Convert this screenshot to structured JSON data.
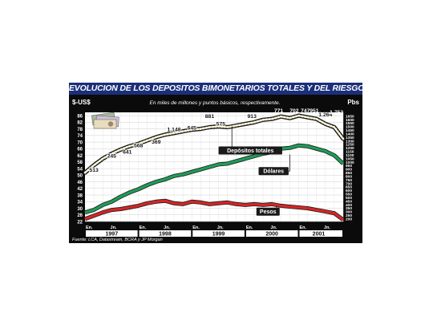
{
  "chart_data": {
    "type": "line",
    "title": "EVOLUCION DE LOS DEPOSITOS BIMONETARIOS TOTALES Y DEL RIESGO-PAIS",
    "subtitle": "En miles de millones y puntos básicos, respectivamente.",
    "ylabel_left": "$-US$",
    "ylabel_right": "Pbs",
    "source": "Fuente: LCA, Datastream, BCRA y JP Morgan",
    "grid": true,
    "x_ticks": [
      {
        "label": "En.",
        "x": 0
      },
      {
        "label": "Jn.",
        "x": 5.5
      },
      {
        "label": "En.",
        "x": 12
      },
      {
        "label": "Jn.",
        "x": 17.5
      },
      {
        "label": "En.",
        "x": 24
      },
      {
        "label": "Jn.",
        "x": 29.5
      },
      {
        "label": "En.",
        "x": 36
      },
      {
        "label": "Jn.",
        "x": 41.5
      },
      {
        "label": "En.",
        "x": 48
      },
      {
        "label": "Jn.",
        "x": 53.5
      }
    ],
    "years": [
      {
        "label": "1997",
        "x": 6
      },
      {
        "label": "1998",
        "x": 18
      },
      {
        "label": "1999",
        "x": 30
      },
      {
        "label": "2000",
        "x": 42
      },
      {
        "label": "2001",
        "x": 52.5
      }
    ],
    "year_boundaries": [
      12,
      24,
      36,
      48
    ],
    "xlim": [
      0,
      58
    ],
    "ylim_left": [
      22,
      88
    ],
    "left_ticks": [
      86,
      82,
      78,
      74,
      70,
      66,
      62,
      58,
      54,
      50,
      46,
      42,
      38,
      34,
      30,
      26,
      22
    ],
    "ylim_right": [
      160,
      1700
    ],
    "right_ticks": [
      1650,
      1600,
      1550,
      1500,
      1450,
      1400,
      1350,
      1300,
      1250,
      1200,
      1150,
      1100,
      1050,
      1000,
      950,
      900,
      850,
      800,
      750,
      700,
      650,
      600,
      550,
      500,
      450,
      400,
      350,
      300,
      250,
      200
    ],
    "series": [
      {
        "name": "Depósitos totales",
        "color": "#fff6d8",
        "style": "dotted",
        "x": [
          0,
          2,
          4,
          6,
          8,
          10,
          12,
          14,
          16,
          18,
          20,
          22,
          24,
          26,
          28,
          30,
          32,
          34,
          36,
          38,
          40,
          42,
          44,
          46,
          48,
          50,
          52,
          54,
          56,
          58
        ],
        "values": [
          51.5,
          56,
          60,
          63,
          65.5,
          67.5,
          69,
          71,
          73,
          74.5,
          75.5,
          76.5,
          77.5,
          78,
          79,
          79.5,
          79,
          80,
          81,
          82,
          83.5,
          84,
          85.5,
          84.5,
          86,
          85,
          84,
          81,
          79,
          72
        ]
      },
      {
        "name": "Dólares",
        "color": "#1f9c58",
        "x": [
          0,
          2,
          4,
          6,
          8,
          10,
          12,
          14,
          16,
          18,
          20,
          22,
          24,
          26,
          28,
          30,
          32,
          34,
          36,
          38,
          40,
          42,
          44,
          46,
          48,
          50,
          52,
          54,
          56,
          58
        ],
        "values": [
          27.5,
          29,
          32,
          34,
          37,
          39.5,
          41.5,
          44,
          46,
          47.5,
          49.5,
          50.5,
          52,
          53.5,
          55,
          56.5,
          57,
          58.5,
          60,
          61.5,
          63,
          64,
          66,
          66.5,
          68,
          67.5,
          66,
          64.5,
          62,
          57
        ]
      },
      {
        "name": "Pesos",
        "color": "#d42626",
        "x": [
          0,
          2,
          4,
          6,
          8,
          10,
          12,
          14,
          16,
          18,
          20,
          22,
          24,
          26,
          28,
          30,
          32,
          34,
          36,
          38,
          40,
          42,
          44,
          46,
          48,
          50,
          52,
          54,
          56,
          58
        ],
        "values": [
          23.5,
          25.5,
          27.5,
          29,
          29.5,
          30.5,
          31.5,
          33,
          34,
          34.5,
          33,
          32.5,
          34,
          33.5,
          32.5,
          33,
          33.5,
          32.5,
          32,
          32.5,
          32,
          32.5,
          31.5,
          31,
          30.5,
          30,
          29,
          28,
          27,
          23
        ]
      }
    ],
    "riesgo_pais": {
      "name": "Riesgo-país",
      "labels": [
        {
          "text": "513",
          "x": 2,
          "y": 52
        },
        {
          "text": "245",
          "x": 6,
          "y": 60.5
        },
        {
          "text": "641",
          "x": 9.5,
          "y": 63
        },
        {
          "text": "568",
          "x": 12,
          "y": 67
        },
        {
          "text": "369",
          "x": 16,
          "y": 69
        },
        {
          "text": "1.148",
          "x": 20,
          "y": 76.5
        },
        {
          "text": "645",
          "x": 24,
          "y": 77.5
        },
        {
          "text": "881",
          "x": 28,
          "y": 84.5
        },
        {
          "text": "575",
          "x": 30.5,
          "y": 80
        },
        {
          "text": "913",
          "x": 37.5,
          "y": 84.5
        },
        {
          "text": "771",
          "x": 43.5,
          "y": 88
        },
        {
          "text": "702",
          "x": 47,
          "y": 88
        },
        {
          "text": "747",
          "x": 49.5,
          "y": 88
        },
        {
          "text": "951",
          "x": 51.5,
          "y": 88
        },
        {
          "text": "1.264",
          "x": 54,
          "y": 85.5
        },
        {
          "text": "1.752",
          "x": 56.5,
          "y": 87
        }
      ]
    }
  }
}
